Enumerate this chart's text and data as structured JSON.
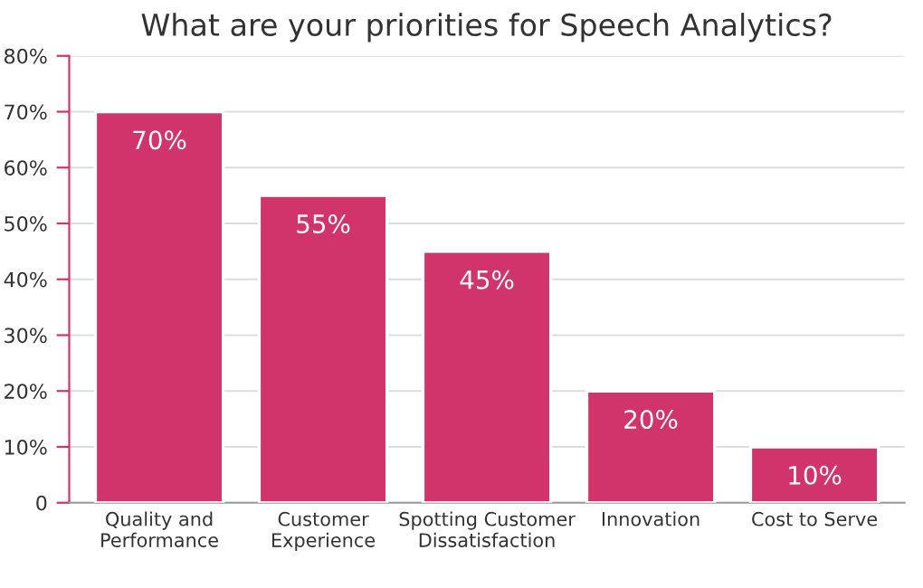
{
  "chart_data": {
    "type": "bar",
    "title": "What are your priorities for Speech Analytics?",
    "categories": [
      "Quality and\nPerformance",
      "Customer\nExperience",
      "Spotting Customer\nDissatisfaction",
      "Innovation",
      "Cost to Serve"
    ],
    "values": [
      70,
      55,
      45,
      20,
      10
    ],
    "value_labels": [
      "70%",
      "55%",
      "45%",
      "20%",
      "10%"
    ],
    "color": "#d0346b",
    "ylim": [
      0,
      80
    ],
    "yticks": [
      0,
      {
        "value": 10,
        "label": "10%"
      },
      {
        "value": 20,
        "label": "20%"
      },
      {
        "value": 30,
        "label": "30%"
      },
      {
        "value": 40,
        "label": "40%"
      },
      {
        "value": 50,
        "label": "50%"
      },
      {
        "value": 60,
        "label": "60%"
      },
      {
        "value": 70,
        "label": "70%"
      },
      {
        "value": 80,
        "label": "80%"
      }
    ],
    "grid": "y",
    "legend": false
  }
}
